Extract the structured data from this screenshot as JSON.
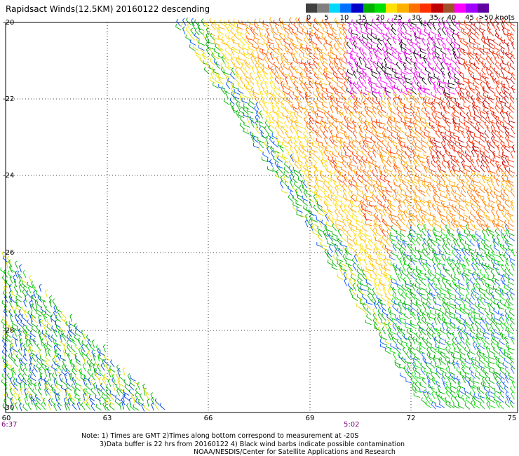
{
  "title": "Rapidsact Winds(12.5KM) 20160122 descending",
  "colorbar": {
    "segments": [
      "#404040",
      "#808080",
      "#00d8ff",
      "#0070ff",
      "#0000c8",
      "#00b000",
      "#00e000",
      "#ffe000",
      "#ffb000",
      "#ff7000",
      "#ff3000",
      "#c00000",
      "#a05028",
      "#ff00ff",
      "#a000ff",
      "#6000a0"
    ],
    "labels": [
      "0",
      "5",
      "10",
      "15",
      "20",
      "25",
      "30",
      "35",
      "40",
      "45",
      ">50 knots"
    ]
  },
  "axes": {
    "lat_labels": [
      "-20",
      "-22",
      "-24",
      "-26",
      "-28",
      "-30"
    ],
    "lon_labels": [
      "60",
      "63",
      "66",
      "69",
      "72",
      "75"
    ]
  },
  "times": {
    "left": "6:37",
    "middle": "5:02"
  },
  "notes": {
    "line1": "Note: 1) Times are GMT 2)Times along bottom correspond to measurement at -20S",
    "line2": "3)Data buffer is 22 hrs from 20160122 4) Black wind barbs indicate possible contamination",
    "line3": "NOAA/NESDIS/Center for Satellite Applications and Research"
  }
}
